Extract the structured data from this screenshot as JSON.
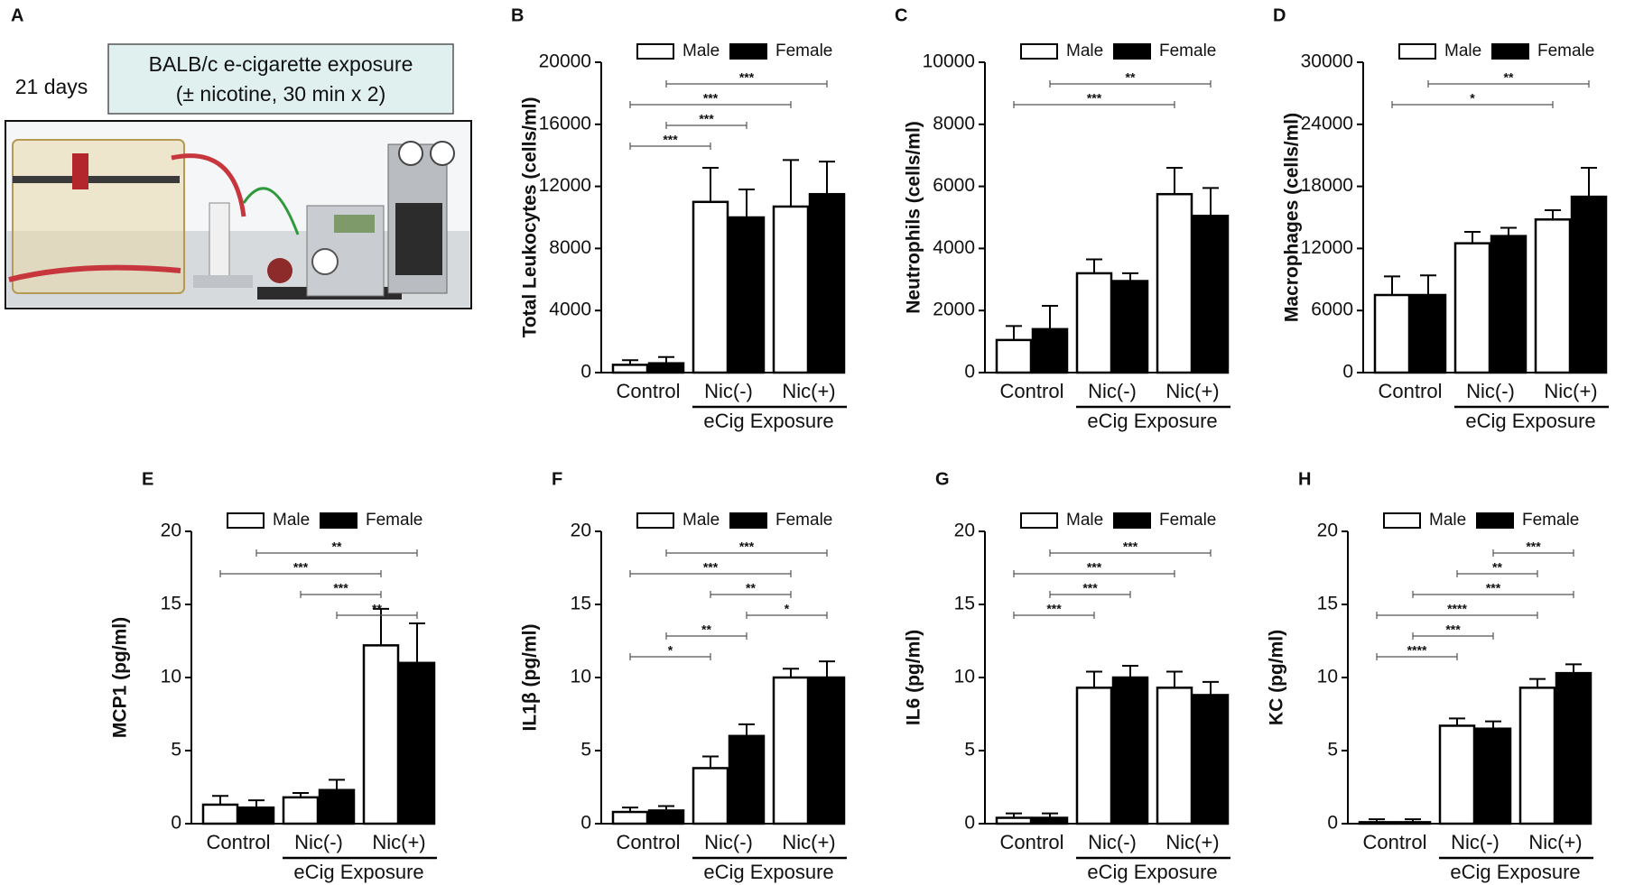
{
  "panel_a": {
    "label": "A",
    "duration": "21 days",
    "box_lines": [
      "BALB/c e-cigarette exposure",
      "(± nicotine, 30 min x 2)"
    ]
  },
  "chart_data": [
    {
      "type": "bar",
      "panel": "B",
      "ylabel": "Total Leukocytes (cells/ml)",
      "categories": [
        "Control",
        "Nic(-)",
        "Nic(+)"
      ],
      "group_label": "eCig Exposure",
      "series": [
        {
          "name": "Male",
          "color": "#ffffff",
          "values": [
            500,
            11000,
            10700
          ],
          "errors": [
            300,
            2200,
            3000
          ]
        },
        {
          "name": "Female",
          "color": "#000000",
          "values": [
            600,
            10000,
            11500
          ],
          "errors": [
            400,
            1800,
            2100
          ]
        }
      ],
      "ylim": [
        0,
        20000
      ],
      "yticks": [
        0,
        4000,
        8000,
        12000,
        16000,
        20000
      ],
      "brackets": [
        {
          "from": 1,
          "to": 5,
          "label": "***"
        },
        {
          "from": 0,
          "to": 4,
          "label": "***"
        },
        {
          "from": 1,
          "to": 3,
          "label": "***"
        },
        {
          "from": 0,
          "to": 2,
          "label": "***"
        }
      ]
    },
    {
      "type": "bar",
      "panel": "C",
      "ylabel": "Neutrophils (cells/ml)",
      "categories": [
        "Control",
        "Nic(-)",
        "Nic(+)"
      ],
      "group_label": "eCig Exposure",
      "series": [
        {
          "name": "Male",
          "color": "#ffffff",
          "values": [
            1050,
            3200,
            5750
          ],
          "errors": [
            450,
            450,
            850
          ]
        },
        {
          "name": "Female",
          "color": "#000000",
          "values": [
            1400,
            2950,
            5050
          ],
          "errors": [
            750,
            250,
            900
          ]
        }
      ],
      "ylim": [
        0,
        10000
      ],
      "yticks": [
        0,
        2000,
        4000,
        6000,
        8000,
        10000
      ],
      "brackets": [
        {
          "from": 1,
          "to": 5,
          "label": "**"
        },
        {
          "from": 0,
          "to": 4,
          "label": "***"
        }
      ]
    },
    {
      "type": "bar",
      "panel": "D",
      "ylabel": "Macrophages (cells/ml)",
      "categories": [
        "Control",
        "Nic(-)",
        "Nic(+)"
      ],
      "group_label": "eCig Exposure",
      "series": [
        {
          "name": "Male",
          "color": "#ffffff",
          "values": [
            7500,
            12500,
            14800
          ],
          "errors": [
            1800,
            1100,
            900
          ]
        },
        {
          "name": "Female",
          "color": "#000000",
          "values": [
            7500,
            13200,
            17000
          ],
          "errors": [
            1900,
            800,
            2800
          ]
        }
      ],
      "ylim": [
        0,
        30000
      ],
      "yticks": [
        0,
        6000,
        12000,
        18000,
        24000,
        30000
      ],
      "brackets": [
        {
          "from": 1,
          "to": 5,
          "label": "**"
        },
        {
          "from": 0,
          "to": 4,
          "label": "*"
        }
      ]
    },
    {
      "type": "bar",
      "panel": "E",
      "ylabel": "MCP1 (pg/ml)",
      "categories": [
        "Control",
        "Nic(-)",
        "Nic(+)"
      ],
      "group_label": "eCig Exposure",
      "series": [
        {
          "name": "Male",
          "color": "#ffffff",
          "values": [
            1.3,
            1.8,
            12.2
          ],
          "errors": [
            0.6,
            0.3,
            2.5
          ]
        },
        {
          "name": "Female",
          "color": "#000000",
          "values": [
            1.1,
            2.3,
            11.0
          ],
          "errors": [
            0.5,
            0.7,
            2.7
          ]
        }
      ],
      "ylim": [
        0,
        20
      ],
      "yticks": [
        0,
        5,
        10,
        15,
        20
      ],
      "brackets": [
        {
          "from": 1,
          "to": 5,
          "label": "**"
        },
        {
          "from": 0,
          "to": 4,
          "label": "***"
        },
        {
          "from": 2,
          "to": 4,
          "label": "***"
        },
        {
          "from": 3,
          "to": 5,
          "label": "**"
        }
      ]
    },
    {
      "type": "bar",
      "panel": "F",
      "ylabel": "IL1β (pg/ml)",
      "categories": [
        "Control",
        "Nic(-)",
        "Nic(+)"
      ],
      "group_label": "eCig Exposure",
      "series": [
        {
          "name": "Male",
          "color": "#ffffff",
          "values": [
            0.8,
            3.8,
            10.0
          ],
          "errors": [
            0.3,
            0.8,
            0.6
          ]
        },
        {
          "name": "Female",
          "color": "#000000",
          "values": [
            0.9,
            6.0,
            10.0
          ],
          "errors": [
            0.3,
            0.8,
            1.1
          ]
        }
      ],
      "ylim": [
        0,
        20
      ],
      "yticks": [
        0,
        5,
        10,
        15,
        20
      ],
      "brackets": [
        {
          "from": 1,
          "to": 5,
          "label": "***"
        },
        {
          "from": 0,
          "to": 4,
          "label": "***"
        },
        {
          "from": 2,
          "to": 4,
          "label": "**"
        },
        {
          "from": 3,
          "to": 5,
          "label": "*"
        },
        {
          "from": 1,
          "to": 3,
          "label": "**"
        },
        {
          "from": 0,
          "to": 2,
          "label": "*"
        }
      ]
    },
    {
      "type": "bar",
      "panel": "G",
      "ylabel": "IL6 (pg/ml)",
      "categories": [
        "Control",
        "Nic(-)",
        "Nic(+)"
      ],
      "group_label": "eCig Exposure",
      "series": [
        {
          "name": "Male",
          "color": "#ffffff",
          "values": [
            0.4,
            9.3,
            9.3
          ],
          "errors": [
            0.3,
            1.1,
            1.1
          ]
        },
        {
          "name": "Female",
          "color": "#000000",
          "values": [
            0.4,
            10.0,
            8.8
          ],
          "errors": [
            0.3,
            0.8,
            0.9
          ]
        }
      ],
      "ylim": [
        0,
        20
      ],
      "yticks": [
        0,
        5,
        10,
        15,
        20
      ],
      "brackets": [
        {
          "from": 1,
          "to": 5,
          "label": "***"
        },
        {
          "from": 0,
          "to": 4,
          "label": "***"
        },
        {
          "from": 1,
          "to": 3,
          "label": "***"
        },
        {
          "from": 0,
          "to": 2,
          "label": "***"
        }
      ]
    },
    {
      "type": "bar",
      "panel": "H",
      "ylabel": "KC (pg/ml)",
      "categories": [
        "Control",
        "Nic(-)",
        "Nic(+)"
      ],
      "group_label": "eCig Exposure",
      "series": [
        {
          "name": "Male",
          "color": "#ffffff",
          "values": [
            0.1,
            6.7,
            9.3
          ],
          "errors": [
            0.2,
            0.5,
            0.6
          ]
        },
        {
          "name": "Female",
          "color": "#000000",
          "values": [
            0.1,
            6.5,
            10.3
          ],
          "errors": [
            0.2,
            0.5,
            0.6
          ]
        }
      ],
      "ylim": [
        0,
        20
      ],
      "yticks": [
        0,
        5,
        10,
        15,
        20
      ],
      "brackets": [
        {
          "from": 3,
          "to": 5,
          "label": "***"
        },
        {
          "from": 2,
          "to": 4,
          "label": "**"
        },
        {
          "from": 1,
          "to": 5,
          "label": "***"
        },
        {
          "from": 0,
          "to": 4,
          "label": "****"
        },
        {
          "from": 1,
          "to": 3,
          "label": "***"
        },
        {
          "from": 0,
          "to": 2,
          "label": "****"
        }
      ]
    }
  ]
}
